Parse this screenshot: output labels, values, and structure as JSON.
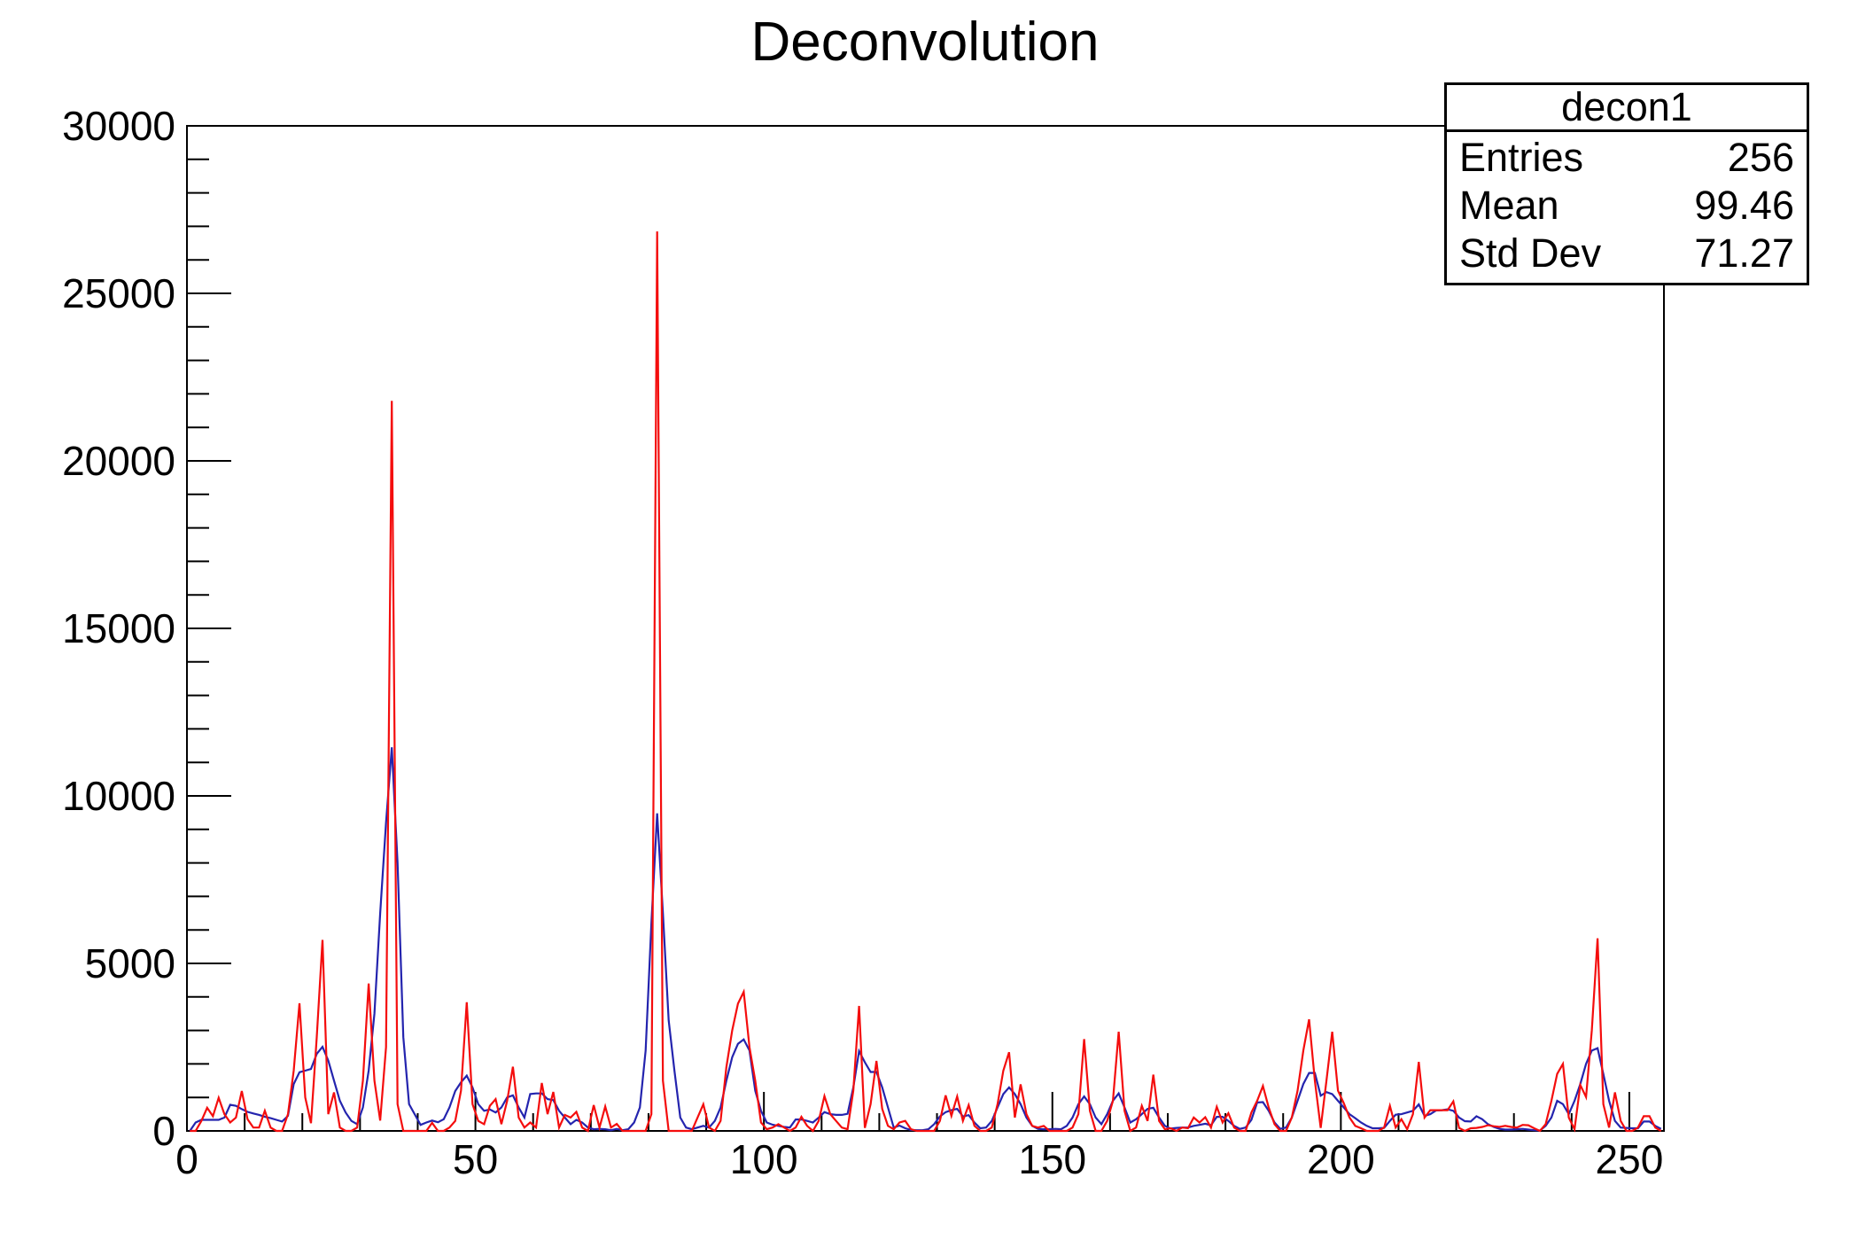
{
  "header": {
    "title": "Deconvolution"
  },
  "stats_box": {
    "title": "decon1",
    "rows": [
      {
        "label": "Entries",
        "value": "256"
      },
      {
        "label": "Mean",
        "value": "99.46"
      },
      {
        "label": "Std Dev",
        "value": "71.27"
      }
    ]
  },
  "chart_data": {
    "type": "line",
    "title": "Deconvolution",
    "xlabel": "",
    "ylabel": "",
    "grid": false,
    "legend_position": "none",
    "x_range": [
      0,
      256
    ],
    "y_range": [
      0,
      30000
    ],
    "x_ticks_major": [
      0,
      50,
      100,
      150,
      200,
      250
    ],
    "x_tick_minor_step": 10,
    "y_ticks_major": [
      0,
      5000,
      10000,
      15000,
      20000,
      25000,
      30000
    ],
    "y_tick_minor_step": 1000,
    "frame_color": "#000000",
    "series": [
      {
        "name": "red-spectrum",
        "color": "#f40d0d",
        "values": [
          0,
          0,
          300,
          690,
          440,
          990,
          500,
          250,
          400,
          1190,
          350,
          100,
          100,
          600,
          100,
          0,
          0,
          500,
          1800,
          3810,
          1000,
          230,
          2800,
          5700,
          500,
          1150,
          100,
          0,
          0,
          100,
          1500,
          4400,
          1500,
          310,
          2500,
          21790,
          800,
          0,
          0,
          0,
          0,
          0,
          240,
          0,
          0,
          100,
          300,
          1200,
          3840,
          800,
          300,
          200,
          750,
          950,
          200,
          900,
          1915,
          400,
          100,
          250,
          100,
          1430,
          500,
          1165,
          100,
          480,
          400,
          570,
          100,
          0,
          770,
          100,
          730,
          100,
          210,
          0,
          0,
          0,
          0,
          0,
          500,
          26850,
          1500,
          0,
          0,
          0,
          0,
          0,
          400,
          795,
          100,
          0,
          300,
          1900,
          3000,
          3800,
          4150,
          2500,
          1500,
          250,
          50,
          100,
          200,
          100,
          0,
          100,
          420,
          150,
          0,
          300,
          1040,
          500,
          300,
          100,
          50,
          1200,
          3730,
          90,
          800,
          2090,
          660,
          150,
          50,
          250,
          300,
          50,
          0,
          0,
          0,
          0,
          300,
          1060,
          450,
          1030,
          300,
          770,
          150,
          0,
          0,
          100,
          800,
          1800,
          2350,
          400,
          1390,
          500,
          150,
          100,
          150,
          0,
          0,
          0,
          0,
          100,
          500,
          2740,
          600,
          0,
          0,
          300,
          900,
          2960,
          600,
          0,
          100,
          750,
          300,
          1680,
          300,
          50,
          80,
          0,
          100,
          80,
          400,
          250,
          410,
          100,
          720,
          250,
          530,
          100,
          0,
          0,
          550,
          900,
          1340,
          700,
          200,
          0,
          0,
          400,
          1200,
          2400,
          3330,
          1500,
          90,
          1500,
          2960,
          1200,
          830,
          400,
          150,
          80,
          0,
          0,
          0,
          100,
          750,
          100,
          350,
          50,
          500,
          2060,
          400,
          620,
          620,
          620,
          620,
          880,
          90,
          0,
          80,
          90,
          120,
          170,
          140,
          120,
          150,
          120,
          100,
          180,
          170,
          80,
          0,
          200,
          900,
          1700,
          2000,
          400,
          50,
          1370,
          1010,
          3000,
          5750,
          800,
          100,
          1150,
          300,
          0,
          0,
          100,
          440,
          440,
          100,
          0
        ]
      },
      {
        "name": "blue-spectrum",
        "color": "#2424ae",
        "values": [
          0,
          250,
          330,
          330,
          330,
          330,
          400,
          780,
          750,
          650,
          570,
          520,
          480,
          420,
          380,
          330,
          280,
          450,
          1400,
          1750,
          1800,
          1850,
          2300,
          2510,
          2100,
          1500,
          900,
          550,
          300,
          200,
          700,
          1800,
          3500,
          6500,
          9200,
          11450,
          8000,
          2800,
          800,
          490,
          180,
          250,
          310,
          260,
          350,
          700,
          1190,
          1450,
          1650,
          1300,
          800,
          600,
          640,
          550,
          700,
          1000,
          1060,
          700,
          400,
          1100,
          1120,
          1120,
          950,
          920,
          600,
          400,
          200,
          330,
          250,
          100,
          50,
          60,
          50,
          20,
          60,
          20,
          50,
          250,
          700,
          2400,
          6200,
          9480,
          6500,
          3300,
          1800,
          400,
          100,
          50,
          100,
          150,
          100,
          300,
          700,
          1500,
          2200,
          2600,
          2730,
          2400,
          1200,
          600,
          250,
          185,
          150,
          120,
          100,
          340,
          340,
          300,
          250,
          400,
          560,
          500,
          480,
          480,
          510,
          1300,
          2380,
          2050,
          1760,
          1760,
          1300,
          700,
          100,
          160,
          80,
          30,
          20,
          20,
          50,
          200,
          430,
          560,
          620,
          660,
          430,
          470,
          250,
          80,
          100,
          300,
          700,
          1100,
          1300,
          1100,
          800,
          400,
          150,
          60,
          50,
          50,
          60,
          50,
          150,
          400,
          800,
          1030,
          800,
          400,
          200,
          500,
          900,
          1120,
          700,
          250,
          350,
          500,
          660,
          690,
          400,
          150,
          70,
          90,
          100,
          100,
          150,
          180,
          215,
          170,
          420,
          420,
          300,
          150,
          60,
          100,
          330,
          850,
          860,
          600,
          250,
          60,
          100,
          400,
          900,
          1400,
          1730,
          1730,
          1050,
          1160,
          1100,
          900,
          700,
          500,
          380,
          250,
          150,
          80,
          80,
          90,
          300,
          485,
          500,
          550,
          600,
          790,
          450,
          500,
          610,
          620,
          645,
          600,
          400,
          290,
          280,
          440,
          350,
          200,
          120,
          60,
          40,
          40,
          50,
          60,
          40,
          20,
          10,
          150,
          400,
          900,
          800,
          500,
          900,
          1400,
          2000,
          2400,
          2470,
          1700,
          900,
          300,
          100,
          90,
          80,
          80,
          280,
          280,
          150,
          60
        ]
      }
    ]
  }
}
